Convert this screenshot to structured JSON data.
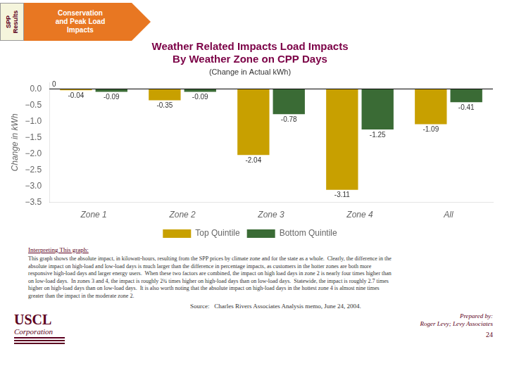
{
  "chart_data": {
    "type": "bar",
    "title": "Weather Related Impacts Load Impacts\nBy Weather Zone on CPP Days",
    "subtitle": "(Change in Actual kWh)",
    "ylabel": "Change in kWh",
    "categories": [
      "Zone 1",
      "Zone 2",
      "Zone 3",
      "Zone 4",
      "All"
    ],
    "series": [
      {
        "name": "Top Quintile",
        "color": "#C8A000",
        "values": [
          -0.04,
          -0.35,
          -2.04,
          -3.11,
          -1.09
        ]
      },
      {
        "name": "Bottom Quintile",
        "color": "#3A6B35",
        "values": [
          -0.09,
          -0.09,
          -0.78,
          -1.25,
          -0.41
        ]
      }
    ],
    "ylim": [
      -3.5,
      0.2
    ],
    "yticks": [
      {
        "value": 0,
        "label": "0.0"
      },
      {
        "value": -0.5,
        "label": "−0.5"
      },
      {
        "value": -1,
        "label": "−1.0"
      },
      {
        "value": -1.5,
        "label": "−1.5"
      },
      {
        "value": -2,
        "label": "−2.0"
      },
      {
        "value": -2.5,
        "label": "−2.5"
      },
      {
        "value": -3,
        "label": "−3.0"
      },
      {
        "value": -3.5,
        "label": "−3.5"
      }
    ],
    "grid": false,
    "legend": "bottom",
    "data_labels": true,
    "annotations": [
      "SPP\nResults",
      "Conservation\nand Peak Load\nImpacts",
      "0",
      "Interpreting This graph:",
      "This graph shows the absolute impact, in kilowatt-hours, resulting from the SPP prices by climate zone and for the state as a whole.  Clearly, the difference in the\nabsolute impact on high-load and low-load days is much larger than the difference in percentage impacts, as customers in the hotter zones are both more\nresponsive high-load days and larger energy users.  When these two factors are combined, the impact on high load days in zone 2 is nearly four times higher than\non low-load days.  In zones 3 and 4, the impact is roughly 2¾ times higher on high-load days than on low-load days.  Statewide, the impact is roughly 2.7 times\nhigher on high-load days than on low-load days.  It is also worth noting that the absolute impact on high-load days in the hottest zone 4 is almost nine times\ngreater than the impact in the moderate zone 2.",
      "Source:   Charles Rivers Associates Analysis memo, June 24, 2004.",
      "USCL",
      "Corporation",
      "Prepared by:",
      "Roger Levy; Levy Associates",
      "24"
    ]
  }
}
